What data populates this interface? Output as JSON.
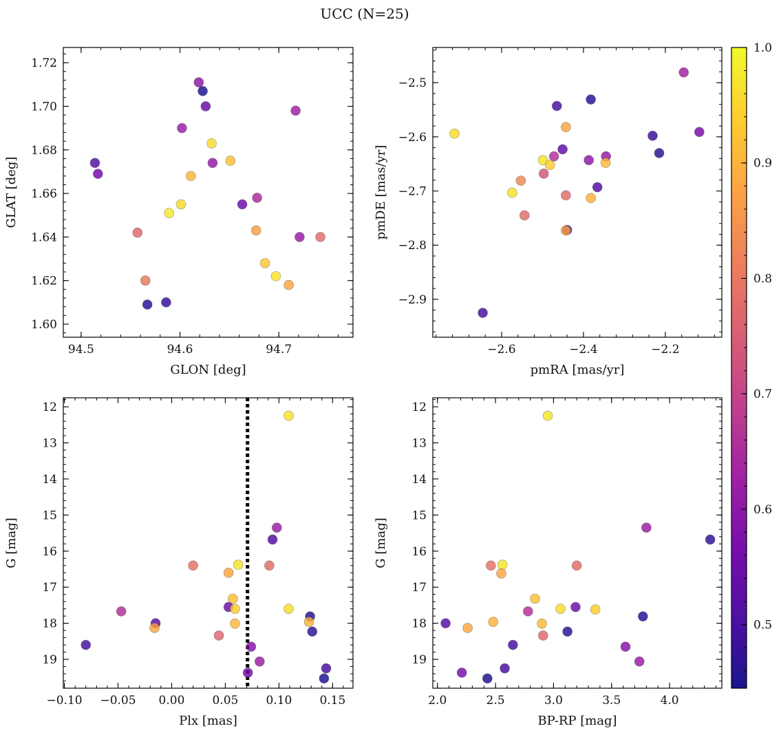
{
  "figure": {
    "title": "UCC (N=25)"
  },
  "colors": {
    "colormap": [
      "#0d0887",
      "#46039f",
      "#7201a8",
      "#9c179e",
      "#bd3786",
      "#d8576b",
      "#ed7953",
      "#fb9f3a",
      "#fdca26",
      "#f0f921"
    ],
    "marker_alpha": 0.8,
    "marker_edge": "#555555",
    "vline": "#000000"
  },
  "colorbar": {
    "range": [
      0.445,
      1.0
    ],
    "ticks": [
      0.5,
      0.6,
      0.7,
      0.8,
      0.9,
      1.0
    ],
    "tick_labels": [
      "0.5",
      "0.6",
      "0.7",
      "0.8",
      "0.9",
      "1.0"
    ]
  },
  "chart_data": [
    {
      "type": "scatter",
      "xlabel": "GLON [deg]",
      "ylabel": "GLAT [deg]",
      "xlim": [
        94.482,
        94.775
      ],
      "ylim": [
        1.594,
        1.727
      ],
      "xticks": [
        94.5,
        94.6,
        94.7
      ],
      "xtick_labels": [
        "94.5",
        "94.6",
        "94.7"
      ],
      "yticks": [
        1.6,
        1.62,
        1.64,
        1.66,
        1.68,
        1.7,
        1.72
      ],
      "ytick_labels": [
        "1.60",
        "1.62",
        "1.64",
        "1.66",
        "1.68",
        "1.70",
        "1.72"
      ],
      "x": [
        94.619,
        94.623,
        94.626,
        94.717,
        94.602,
        94.514,
        94.517,
        94.632,
        94.633,
        94.651,
        94.611,
        94.678,
        94.601,
        94.663,
        94.589,
        94.557,
        94.677,
        94.721,
        94.742,
        94.686,
        94.697,
        94.565,
        94.71,
        94.567,
        94.586
      ],
      "y": [
        1.711,
        1.707,
        1.7,
        1.698,
        1.69,
        1.674,
        1.669,
        1.683,
        1.674,
        1.675,
        1.668,
        1.658,
        1.655,
        1.655,
        1.651,
        1.642,
        1.643,
        1.64,
        1.64,
        1.628,
        1.622,
        1.62,
        1.618,
        1.609,
        1.61
      ],
      "c": [
        0.6,
        0.45,
        0.55,
        0.63,
        0.62,
        0.52,
        0.56,
        0.96,
        0.61,
        0.92,
        0.9,
        0.65,
        0.96,
        0.55,
        0.98,
        0.77,
        0.87,
        0.62,
        0.78,
        0.93,
        0.97,
        0.8,
        0.88,
        0.46,
        0.48
      ]
    },
    {
      "type": "scatter",
      "xlabel": "pmRA [mas/yr]",
      "ylabel": "pmDE [mas/yr]",
      "xlim": [
        -2.768,
        -2.062
      ],
      "ylim": [
        -2.97,
        -2.435
      ],
      "xticks": [
        -2.6,
        -2.4,
        -2.2
      ],
      "xtick_labels": [
        "−2.6",
        "−2.4",
        "−2.2"
      ],
      "yticks": [
        -2.9,
        -2.8,
        -2.7,
        -2.6,
        -2.5
      ],
      "ytick_labels": [
        "−2.9",
        "−2.8",
        "−2.7",
        "−2.6",
        "−2.5"
      ],
      "x": [
        -2.155,
        -2.382,
        -2.465,
        -2.715,
        -2.443,
        -2.231,
        -2.117,
        -2.451,
        -2.215,
        -2.472,
        -2.387,
        -2.345,
        -2.499,
        -2.482,
        -2.346,
        -2.497,
        -2.553,
        -2.366,
        -2.574,
        -2.443,
        -2.382,
        -2.544,
        -2.44,
        -2.443,
        -2.646
      ],
      "y": [
        -2.481,
        -2.531,
        -2.543,
        -2.594,
        -2.582,
        -2.598,
        -2.591,
        -2.623,
        -2.63,
        -2.636,
        -2.643,
        -2.636,
        -2.643,
        -2.652,
        -2.648,
        -2.668,
        -2.681,
        -2.693,
        -2.703,
        -2.708,
        -2.713,
        -2.745,
        -2.772,
        -2.773,
        -2.925
      ],
      "c": [
        0.63,
        0.47,
        0.5,
        0.96,
        0.88,
        0.48,
        0.57,
        0.53,
        0.47,
        0.66,
        0.6,
        0.61,
        0.97,
        0.94,
        0.91,
        0.74,
        0.83,
        0.51,
        0.97,
        0.78,
        0.9,
        0.78,
        0.49,
        0.88,
        0.5
      ]
    },
    {
      "type": "scatter",
      "xlabel": "Plx [mas]",
      "ylabel": "G [mag]",
      "xlim": [
        -0.101,
        0.169
      ],
      "ylim": [
        19.8,
        11.75
      ],
      "xticks": [
        -0.1,
        -0.05,
        0.0,
        0.05,
        0.1,
        0.15
      ],
      "xtick_labels": [
        "−0.10",
        "−0.05",
        "0.00",
        "0.05",
        "0.10",
        "0.15"
      ],
      "yticks": [
        12,
        13,
        14,
        15,
        16,
        17,
        18,
        19
      ],
      "ytick_labels": [
        "12",
        "13",
        "14",
        "15",
        "16",
        "17",
        "18",
        "19"
      ],
      "vline": 0.0707,
      "x": [
        0.109,
        0.098,
        0.094,
        0.02,
        0.062,
        0.091,
        0.053,
        0.057,
        0.053,
        0.059,
        0.109,
        -0.047,
        0.129,
        0.128,
        -0.015,
        -0.016,
        0.059,
        0.131,
        0.044,
        -0.08,
        0.074,
        0.082,
        0.071,
        0.142,
        0.144
      ],
      "y": [
        12.25,
        15.35,
        15.68,
        16.4,
        16.38,
        16.4,
        16.6,
        17.32,
        17.55,
        17.6,
        17.6,
        17.67,
        17.81,
        17.96,
        18.0,
        18.13,
        18.01,
        18.23,
        18.34,
        18.6,
        18.65,
        19.06,
        19.37,
        19.53,
        19.25
      ],
      "c": [
        0.97,
        0.62,
        0.51,
        0.79,
        0.97,
        0.78,
        0.88,
        0.92,
        0.55,
        0.94,
        0.96,
        0.66,
        0.46,
        0.9,
        0.52,
        0.88,
        0.91,
        0.47,
        0.77,
        0.5,
        0.59,
        0.62,
        0.57,
        0.45,
        0.5
      ]
    },
    {
      "type": "scatter",
      "xlabel": "BP-RP [mag]",
      "ylabel": "G [mag]",
      "xlim": [
        1.96,
        4.45
      ],
      "ylim": [
        19.8,
        11.75
      ],
      "xticks": [
        2.0,
        2.5,
        3.0,
        3.5,
        4.0
      ],
      "xtick_labels": [
        "2.0",
        "2.5",
        "3.0",
        "3.5",
        "4.0"
      ],
      "yticks": [
        12,
        13,
        14,
        15,
        16,
        17,
        18,
        19
      ],
      "ytick_labels": [
        "12",
        "13",
        "14",
        "15",
        "16",
        "17",
        "18",
        "19"
      ],
      "x": [
        2.95,
        3.8,
        4.35,
        2.46,
        2.56,
        3.2,
        2.55,
        2.84,
        3.19,
        3.36,
        3.06,
        2.78,
        3.77,
        2.48,
        2.07,
        2.26,
        2.9,
        3.12,
        2.91,
        2.65,
        3.62,
        3.74,
        2.21,
        2.43,
        2.58
      ],
      "y": [
        12.25,
        15.35,
        15.68,
        16.4,
        16.38,
        16.4,
        16.62,
        17.32,
        17.55,
        17.62,
        17.6,
        17.67,
        17.81,
        17.96,
        18.0,
        18.13,
        18.01,
        18.23,
        18.34,
        18.6,
        18.65,
        19.06,
        19.37,
        19.53,
        19.25
      ],
      "c": [
        0.97,
        0.62,
        0.47,
        0.79,
        0.97,
        0.78,
        0.88,
        0.92,
        0.55,
        0.94,
        0.96,
        0.66,
        0.46,
        0.9,
        0.52,
        0.88,
        0.91,
        0.47,
        0.77,
        0.5,
        0.59,
        0.62,
        0.57,
        0.45,
        0.5
      ]
    }
  ]
}
